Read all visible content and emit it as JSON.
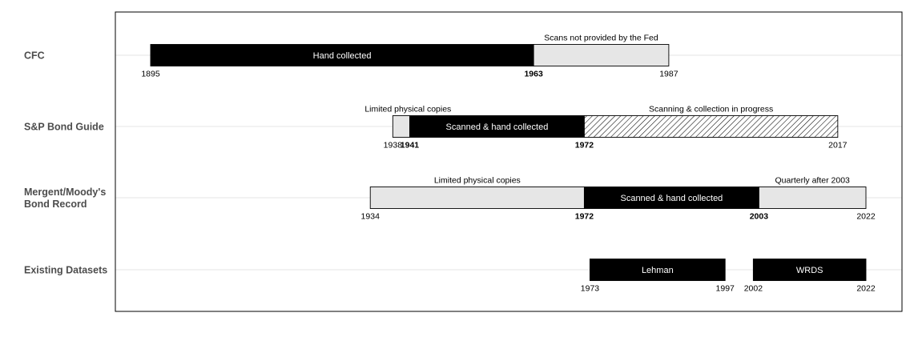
{
  "chart_data": {
    "type": "timeline",
    "title": "",
    "xlabel": "",
    "ylabel": "",
    "xlim": [
      1892,
      2026
    ],
    "grid": true,
    "rows": [
      {
        "label": "CFC",
        "segments": [
          {
            "start": 1895,
            "end": 1963,
            "fill": "black",
            "label": "Hand collected"
          },
          {
            "start": 1963,
            "end": 1987,
            "fill": "light",
            "label": ""
          }
        ],
        "ticks": [
          {
            "year": 1895,
            "text": "1895",
            "bold": false
          },
          {
            "year": 1963,
            "text": "1963",
            "bold": true
          },
          {
            "year": 1987,
            "text": "1987",
            "bold": false
          }
        ],
        "annotations": [
          {
            "center": 1975,
            "text": "Scans not provided by the Fed"
          }
        ]
      },
      {
        "label": "S&P Bond Guide",
        "segments": [
          {
            "start": 1938,
            "end": 1941,
            "fill": "light",
            "label": ""
          },
          {
            "start": 1941,
            "end": 1972,
            "fill": "black",
            "label": "Scanned & hand collected"
          },
          {
            "start": 1972,
            "end": 2017,
            "fill": "hatch",
            "label": ""
          }
        ],
        "ticks": [
          {
            "year": 1938,
            "text": "1938",
            "bold": false
          },
          {
            "year": 1941,
            "text": "1941",
            "bold": true
          },
          {
            "year": 1972,
            "text": "1972",
            "bold": true
          },
          {
            "year": 2017,
            "text": "2017",
            "bold": false
          }
        ],
        "annotations": [
          {
            "center": 1940.7,
            "text": "Limited physical copies"
          },
          {
            "center": 1994.5,
            "text": "Scanning & collection in progress"
          }
        ]
      },
      {
        "label": "Mergent/Moody's\nBond Record",
        "label_lines": [
          "Mergent/Moody's",
          "Bond Record"
        ],
        "segments": [
          {
            "start": 1934,
            "end": 1972,
            "fill": "light",
            "label": ""
          },
          {
            "start": 1972,
            "end": 2003,
            "fill": "black",
            "label": "Scanned & hand collected"
          },
          {
            "start": 2003,
            "end": 2022,
            "fill": "light",
            "label": ""
          }
        ],
        "ticks": [
          {
            "year": 1934,
            "text": "1934",
            "bold": false
          },
          {
            "year": 1972,
            "text": "1972",
            "bold": true
          },
          {
            "year": 2003,
            "text": "2003",
            "bold": true
          },
          {
            "year": 2022,
            "text": "2022",
            "bold": false
          }
        ],
        "annotations": [
          {
            "center": 1953,
            "text": "Limited physical copies"
          },
          {
            "center": 2012.5,
            "text": "Quarterly after 2003"
          }
        ]
      },
      {
        "label": "Existing Datasets",
        "segments": [
          {
            "start": 1973,
            "end": 1997,
            "fill": "black",
            "label": "Lehman"
          },
          {
            "start": 2002,
            "end": 2022,
            "fill": "black",
            "label": "WRDS"
          }
        ],
        "ticks": [
          {
            "year": 1973,
            "text": "1973",
            "bold": false
          },
          {
            "year": 1997,
            "text": "1997",
            "bold": false
          },
          {
            "year": 2002,
            "text": "2002",
            "bold": false
          },
          {
            "year": 2022,
            "text": "2022",
            "bold": false
          }
        ],
        "annotations": []
      }
    ],
    "colors": {
      "black": "#000000",
      "light": "#e6e6e6",
      "grid": "#dcdcdc",
      "hatch": "#000000",
      "row_label": "#4d4d4d"
    }
  }
}
